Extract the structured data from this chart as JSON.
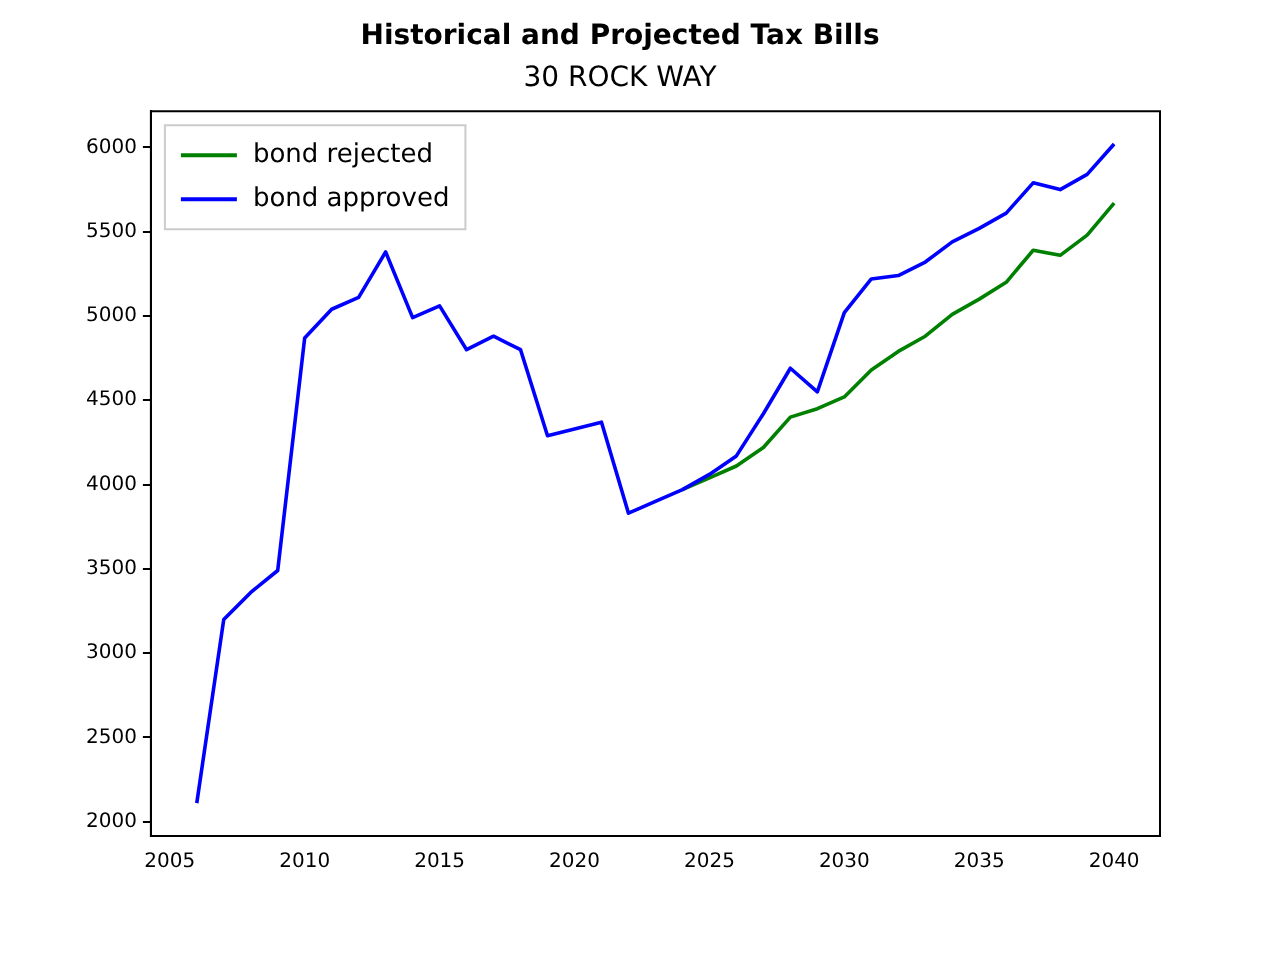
{
  "chart_data": {
    "type": "line",
    "title": "Historical and Projected Tax Bills",
    "subtitle": "30 ROCK WAY",
    "x": [
      2006,
      2007,
      2008,
      2009,
      2010,
      2011,
      2012,
      2013,
      2014,
      2015,
      2016,
      2017,
      2018,
      2019,
      2020,
      2021,
      2022,
      2023,
      2024,
      2025,
      2026,
      2027,
      2028,
      2029,
      2030,
      2031,
      2032,
      2033,
      2034,
      2035,
      2036,
      2037,
      2038,
      2039,
      2040
    ],
    "series": [
      {
        "name": "bond rejected",
        "color": "#008000",
        "values": [
          null,
          null,
          null,
          null,
          null,
          null,
          null,
          null,
          null,
          null,
          null,
          null,
          null,
          null,
          null,
          null,
          null,
          null,
          3970,
          4040,
          4110,
          4220,
          4400,
          4450,
          4520,
          4680,
          4790,
          4880,
          5010,
          5100,
          5200,
          5390,
          5360,
          5480,
          5670
        ]
      },
      {
        "name": "bond approved",
        "color": "#0000ff",
        "values": [
          2110,
          3200,
          3360,
          3490,
          4870,
          5040,
          5110,
          5380,
          4990,
          5060,
          4800,
          4880,
          4800,
          4290,
          4330,
          4370,
          3830,
          3900,
          3970,
          4060,
          4170,
          4420,
          4690,
          4550,
          5020,
          5220,
          5240,
          5320,
          5440,
          5520,
          5610,
          5790,
          5750,
          5840,
          6020
        ]
      }
    ],
    "xlim": [
      2004.3,
      2041.7
    ],
    "xticks": [
      2005,
      2010,
      2015,
      2020,
      2025,
      2030,
      2035,
      2040
    ],
    "ylim": [
      1915,
      6215
    ],
    "yticks": [
      2000,
      2500,
      3000,
      3500,
      4000,
      4500,
      5000,
      5500,
      6000
    ],
    "grid": false,
    "legend": "top left",
    "marker": "none",
    "line_style": "solid"
  }
}
